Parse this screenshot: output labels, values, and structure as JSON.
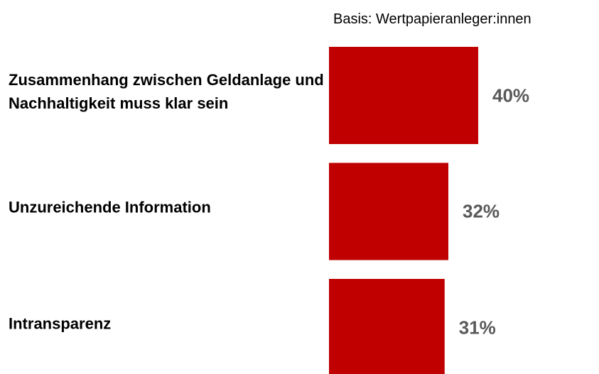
{
  "chart_data": {
    "type": "bar",
    "orientation": "horizontal",
    "subtitle": "Basis: Wertpapieranleger:innen",
    "categories": [
      "Zusammenhang zwischen Geldanlage und Nachhaltigkeit muss klar sein",
      "Unzureichende Information",
      "Intransparenz"
    ],
    "values": [
      40,
      32,
      31
    ],
    "value_labels": [
      "40%",
      "32%",
      "31%"
    ],
    "color": "#c00000"
  }
}
